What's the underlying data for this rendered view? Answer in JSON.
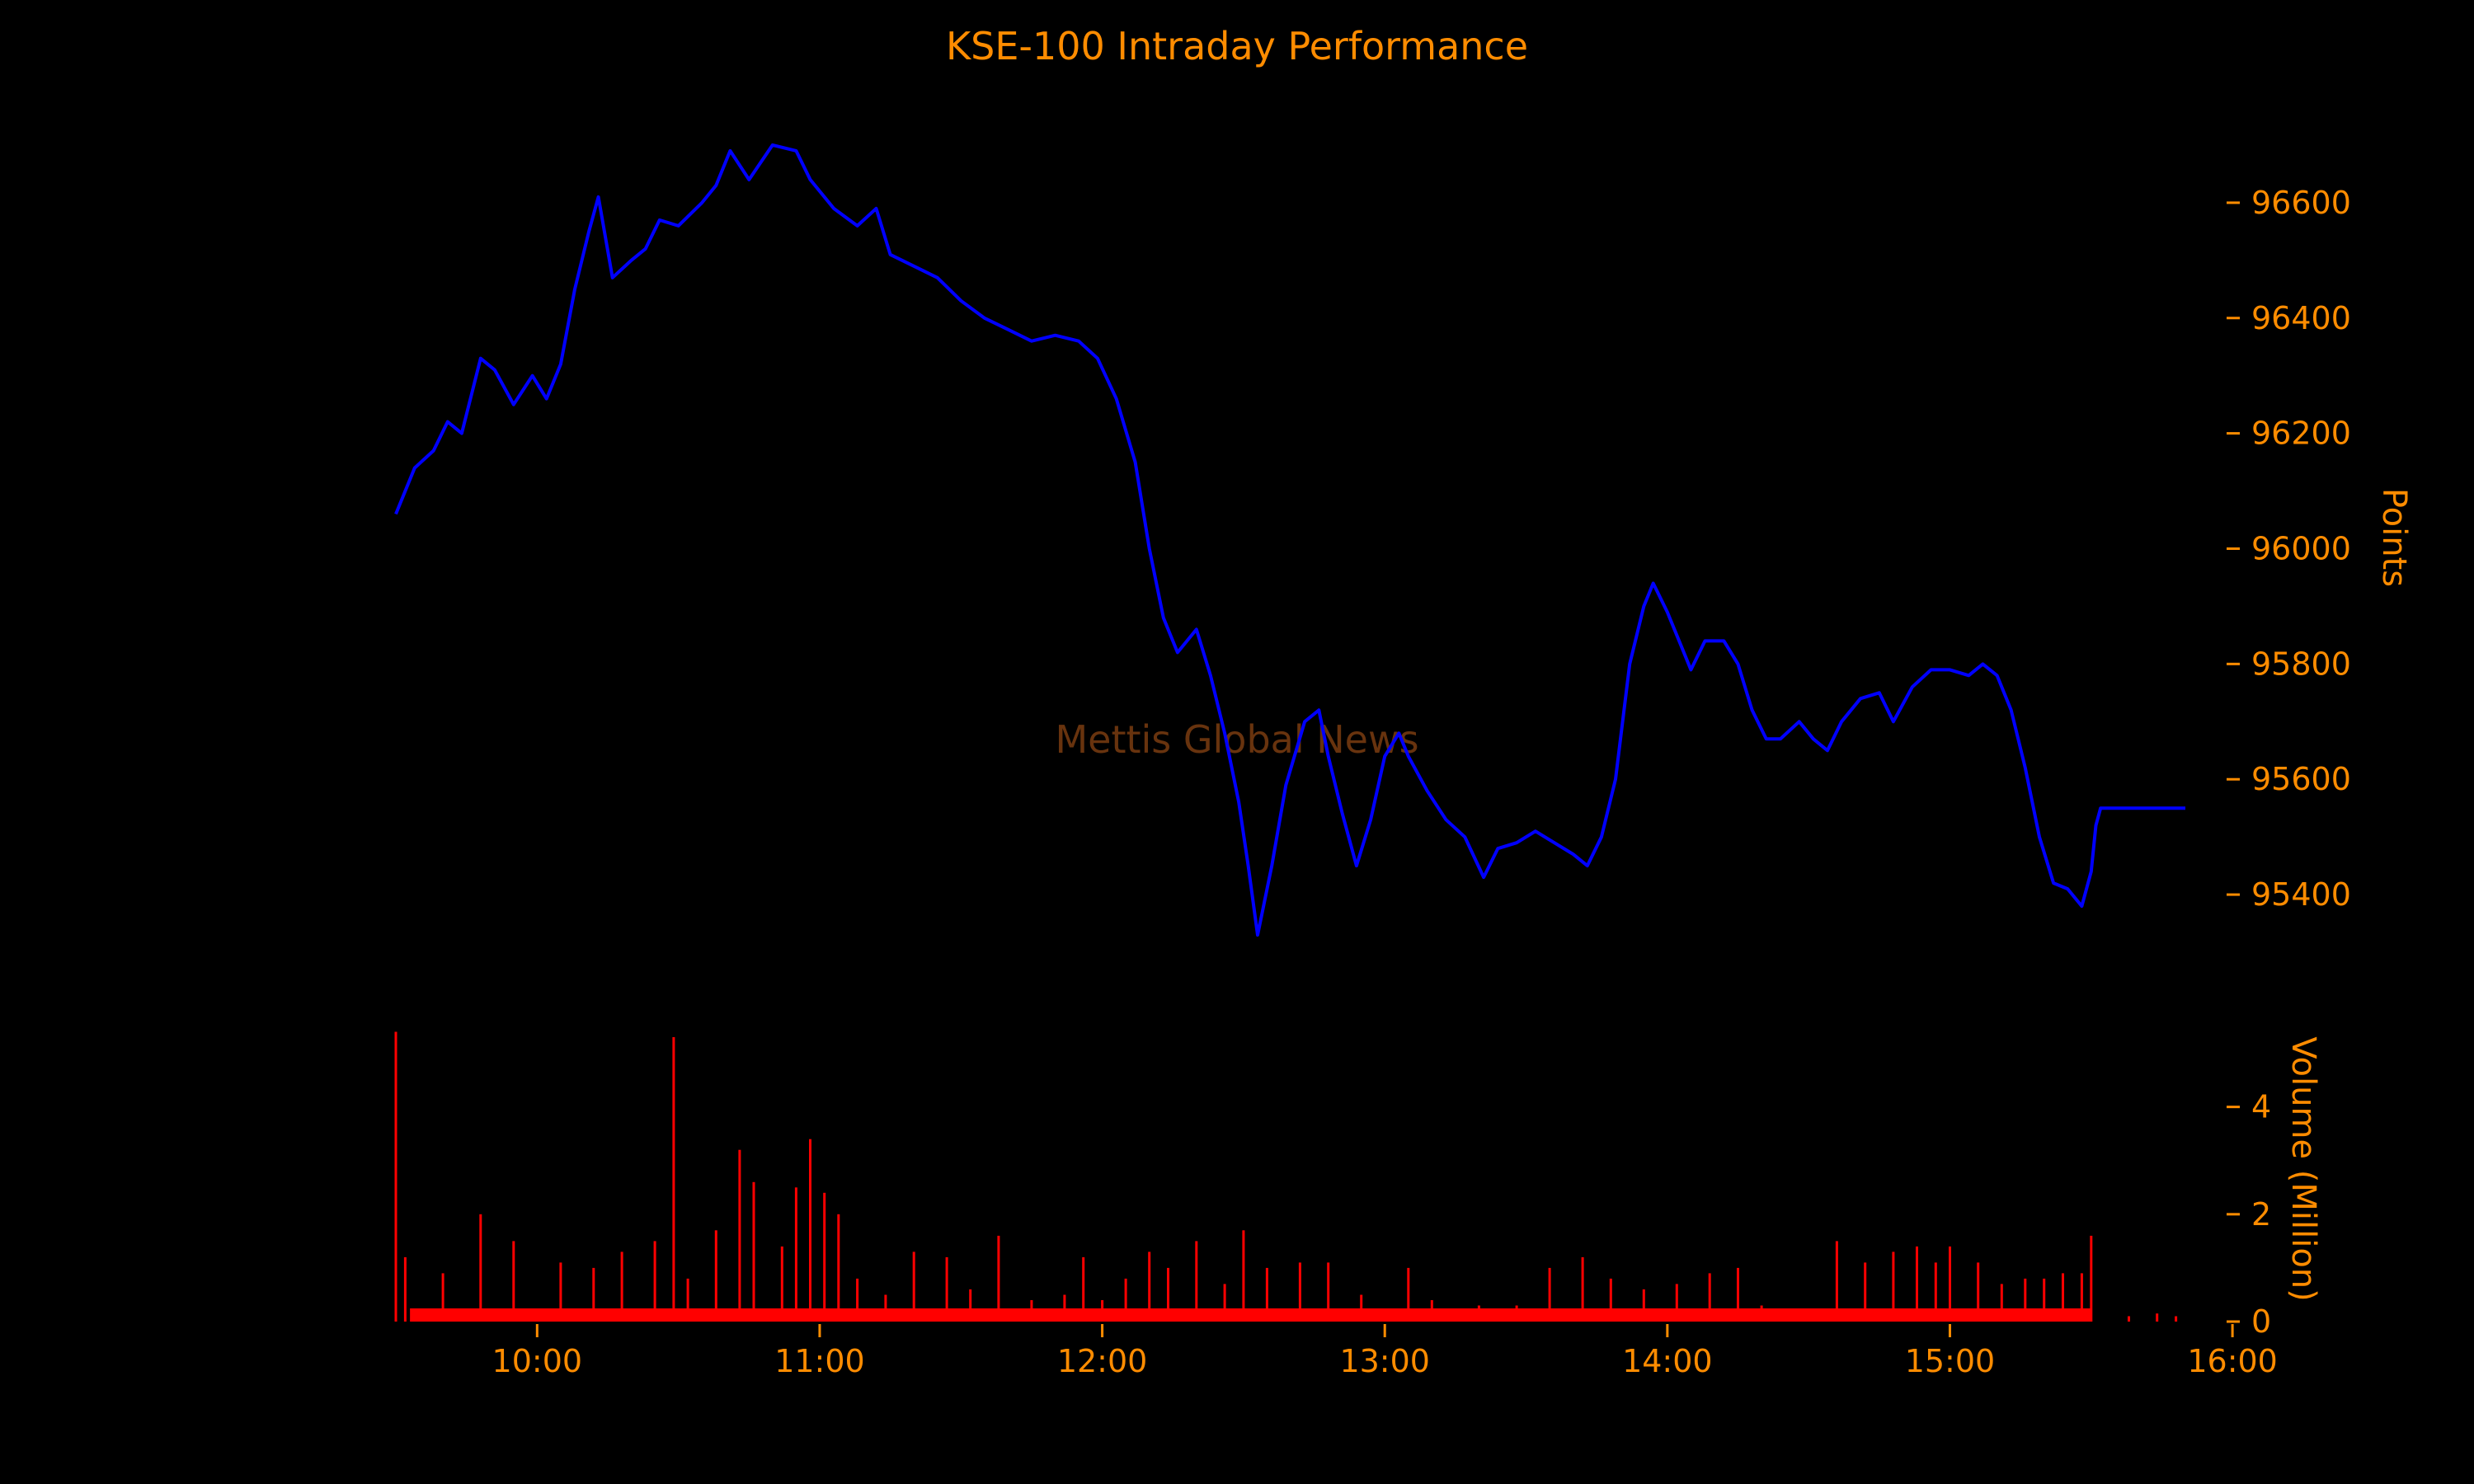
{
  "chart_data": {
    "type": "line",
    "title": "KSE-100 Intraday Performance",
    "watermark": "Mettis Global News",
    "x_ticks": [
      "10:00",
      "11:00",
      "12:00",
      "13:00",
      "14:00",
      "15:00",
      "16:00"
    ],
    "price_axis": {
      "label": "Points",
      "ylim": [
        95250,
        96780
      ],
      "ticks": [
        "96600",
        "96400",
        "96200",
        "96000",
        "95800",
        "95600",
        "95400"
      ]
    },
    "volume_axis": {
      "label": "Volume (Million)",
      "ylim": [
        0,
        5.5
      ],
      "ticks": [
        "4",
        "2",
        "0"
      ]
    },
    "colors": {
      "price": "#0000ff",
      "volume": "#ff0000",
      "text": "#ff8c00",
      "background": "#000000"
    },
    "price_series": {
      "name": "",
      "points": [
        [
          "09:30",
          96060
        ],
        [
          "09:34",
          96140
        ],
        [
          "09:38",
          96170
        ],
        [
          "09:41",
          96220
        ],
        [
          "09:44",
          96200
        ],
        [
          "09:48",
          96330
        ],
        [
          "09:51",
          96310
        ],
        [
          "09:55",
          96250
        ],
        [
          "09:59",
          96300
        ],
        [
          "10:02",
          96260
        ],
        [
          "10:05",
          96320
        ],
        [
          "10:08",
          96450
        ],
        [
          "10:11",
          96550
        ],
        [
          "10:13",
          96610
        ],
        [
          "10:16",
          96470
        ],
        [
          "10:20",
          96500
        ],
        [
          "10:23",
          96520
        ],
        [
          "10:26",
          96570
        ],
        [
          "10:30",
          96560
        ],
        [
          "10:35",
          96600
        ],
        [
          "10:38",
          96630
        ],
        [
          "10:41",
          96690
        ],
        [
          "10:45",
          96640
        ],
        [
          "10:50",
          96700
        ],
        [
          "10:55",
          96690
        ],
        [
          "10:58",
          96640
        ],
        [
          "11:03",
          96590
        ],
        [
          "11:08",
          96560
        ],
        [
          "11:12",
          96590
        ],
        [
          "11:15",
          96510
        ],
        [
          "11:20",
          96490
        ],
        [
          "11:25",
          96470
        ],
        [
          "11:30",
          96430
        ],
        [
          "11:35",
          96400
        ],
        [
          "11:40",
          96380
        ],
        [
          "11:45",
          96360
        ],
        [
          "11:50",
          96370
        ],
        [
          "11:55",
          96360
        ],
        [
          "11:59",
          96330
        ],
        [
          "12:03",
          96260
        ],
        [
          "12:07",
          96150
        ],
        [
          "12:10",
          96000
        ],
        [
          "12:13",
          95880
        ],
        [
          "12:16",
          95820
        ],
        [
          "12:20",
          95860
        ],
        [
          "12:23",
          95780
        ],
        [
          "12:26",
          95680
        ],
        [
          "12:29",
          95560
        ],
        [
          "12:31",
          95450
        ],
        [
          "12:33",
          95330
        ],
        [
          "12:36",
          95450
        ],
        [
          "12:39",
          95590
        ],
        [
          "12:43",
          95700
        ],
        [
          "12:46",
          95720
        ],
        [
          "12:48",
          95640
        ],
        [
          "12:51",
          95540
        ],
        [
          "12:54",
          95450
        ],
        [
          "12:57",
          95530
        ],
        [
          "13:00",
          95640
        ],
        [
          "13:03",
          95680
        ],
        [
          "13:05",
          95640
        ],
        [
          "13:09",
          95580
        ],
        [
          "13:13",
          95530
        ],
        [
          "13:17",
          95500
        ],
        [
          "13:21",
          95430
        ],
        [
          "13:24",
          95480
        ],
        [
          "13:28",
          95490
        ],
        [
          "13:32",
          95510
        ],
        [
          "13:36",
          95490
        ],
        [
          "13:40",
          95470
        ],
        [
          "13:43",
          95450
        ],
        [
          "13:46",
          95500
        ],
        [
          "13:49",
          95600
        ],
        [
          "13:52",
          95800
        ],
        [
          "13:55",
          95900
        ],
        [
          "13:57",
          95940
        ],
        [
          "14:00",
          95890
        ],
        [
          "14:03",
          95830
        ],
        [
          "14:05",
          95790
        ],
        [
          "14:08",
          95840
        ],
        [
          "14:12",
          95840
        ],
        [
          "14:15",
          95800
        ],
        [
          "14:18",
          95720
        ],
        [
          "14:21",
          95670
        ],
        [
          "14:24",
          95670
        ],
        [
          "14:28",
          95700
        ],
        [
          "14:31",
          95670
        ],
        [
          "14:34",
          95650
        ],
        [
          "14:37",
          95700
        ],
        [
          "14:41",
          95740
        ],
        [
          "14:45",
          95750
        ],
        [
          "14:48",
          95700
        ],
        [
          "14:52",
          95760
        ],
        [
          "14:56",
          95790
        ],
        [
          "15:00",
          95790
        ],
        [
          "15:04",
          95780
        ],
        [
          "15:07",
          95800
        ],
        [
          "15:10",
          95780
        ],
        [
          "15:13",
          95720
        ],
        [
          "15:16",
          95620
        ],
        [
          "15:19",
          95500
        ],
        [
          "15:22",
          95420
        ],
        [
          "15:25",
          95410
        ],
        [
          "15:28",
          95380
        ],
        [
          "15:30",
          95440
        ],
        [
          "15:31",
          95520
        ],
        [
          "15:32",
          95550
        ],
        [
          "15:50",
          95550
        ]
      ]
    },
    "volume_series": {
      "name": "",
      "bars": [
        [
          "09:30",
          5.4
        ],
        [
          "09:32",
          1.2
        ],
        [
          "09:40",
          0.9
        ],
        [
          "09:48",
          2.0
        ],
        [
          "09:55",
          1.5
        ],
        [
          "10:05",
          1.1
        ],
        [
          "10:12",
          1.0
        ],
        [
          "10:18",
          1.3
        ],
        [
          "10:25",
          1.5
        ],
        [
          "10:29",
          5.3
        ],
        [
          "10:32",
          0.8
        ],
        [
          "10:38",
          1.7
        ],
        [
          "10:43",
          3.2
        ],
        [
          "10:46",
          2.6
        ],
        [
          "10:52",
          1.4
        ],
        [
          "10:55",
          2.5
        ],
        [
          "10:58",
          3.4
        ],
        [
          "11:01",
          2.4
        ],
        [
          "11:04",
          2.0
        ],
        [
          "11:08",
          0.8
        ],
        [
          "11:14",
          0.5
        ],
        [
          "11:20",
          1.3
        ],
        [
          "11:27",
          1.2
        ],
        [
          "11:32",
          0.6
        ],
        [
          "11:38",
          1.6
        ],
        [
          "11:45",
          0.4
        ],
        [
          "11:52",
          0.5
        ],
        [
          "11:56",
          1.2
        ],
        [
          "12:00",
          0.4
        ],
        [
          "12:05",
          0.8
        ],
        [
          "12:10",
          1.3
        ],
        [
          "12:14",
          1.0
        ],
        [
          "12:20",
          1.5
        ],
        [
          "12:26",
          0.7
        ],
        [
          "12:30",
          1.7
        ],
        [
          "12:35",
          1.0
        ],
        [
          "12:42",
          1.1
        ],
        [
          "12:48",
          1.1
        ],
        [
          "12:55",
          0.5
        ],
        [
          "13:05",
          1.0
        ],
        [
          "13:10",
          0.4
        ],
        [
          "13:20",
          0.3
        ],
        [
          "13:28",
          0.3
        ],
        [
          "13:35",
          1.0
        ],
        [
          "13:42",
          1.2
        ],
        [
          "13:48",
          0.8
        ],
        [
          "13:55",
          0.6
        ],
        [
          "14:02",
          0.7
        ],
        [
          "14:09",
          0.9
        ],
        [
          "14:15",
          1.0
        ],
        [
          "14:20",
          0.3
        ],
        [
          "14:30",
          0.2
        ],
        [
          "14:36",
          1.5
        ],
        [
          "14:42",
          1.1
        ],
        [
          "14:48",
          1.3
        ],
        [
          "14:53",
          1.4
        ],
        [
          "14:57",
          1.1
        ],
        [
          "15:00",
          1.4
        ],
        [
          "15:06",
          1.1
        ],
        [
          "15:11",
          0.7
        ],
        [
          "15:16",
          0.8
        ],
        [
          "15:20",
          0.8
        ],
        [
          "15:24",
          0.9
        ],
        [
          "15:28",
          0.9
        ],
        [
          "15:30",
          1.6
        ],
        [
          "15:38",
          0.1
        ],
        [
          "15:44",
          0.15
        ],
        [
          "15:48",
          0.1
        ]
      ]
    },
    "grid": false,
    "legend": "none"
  }
}
